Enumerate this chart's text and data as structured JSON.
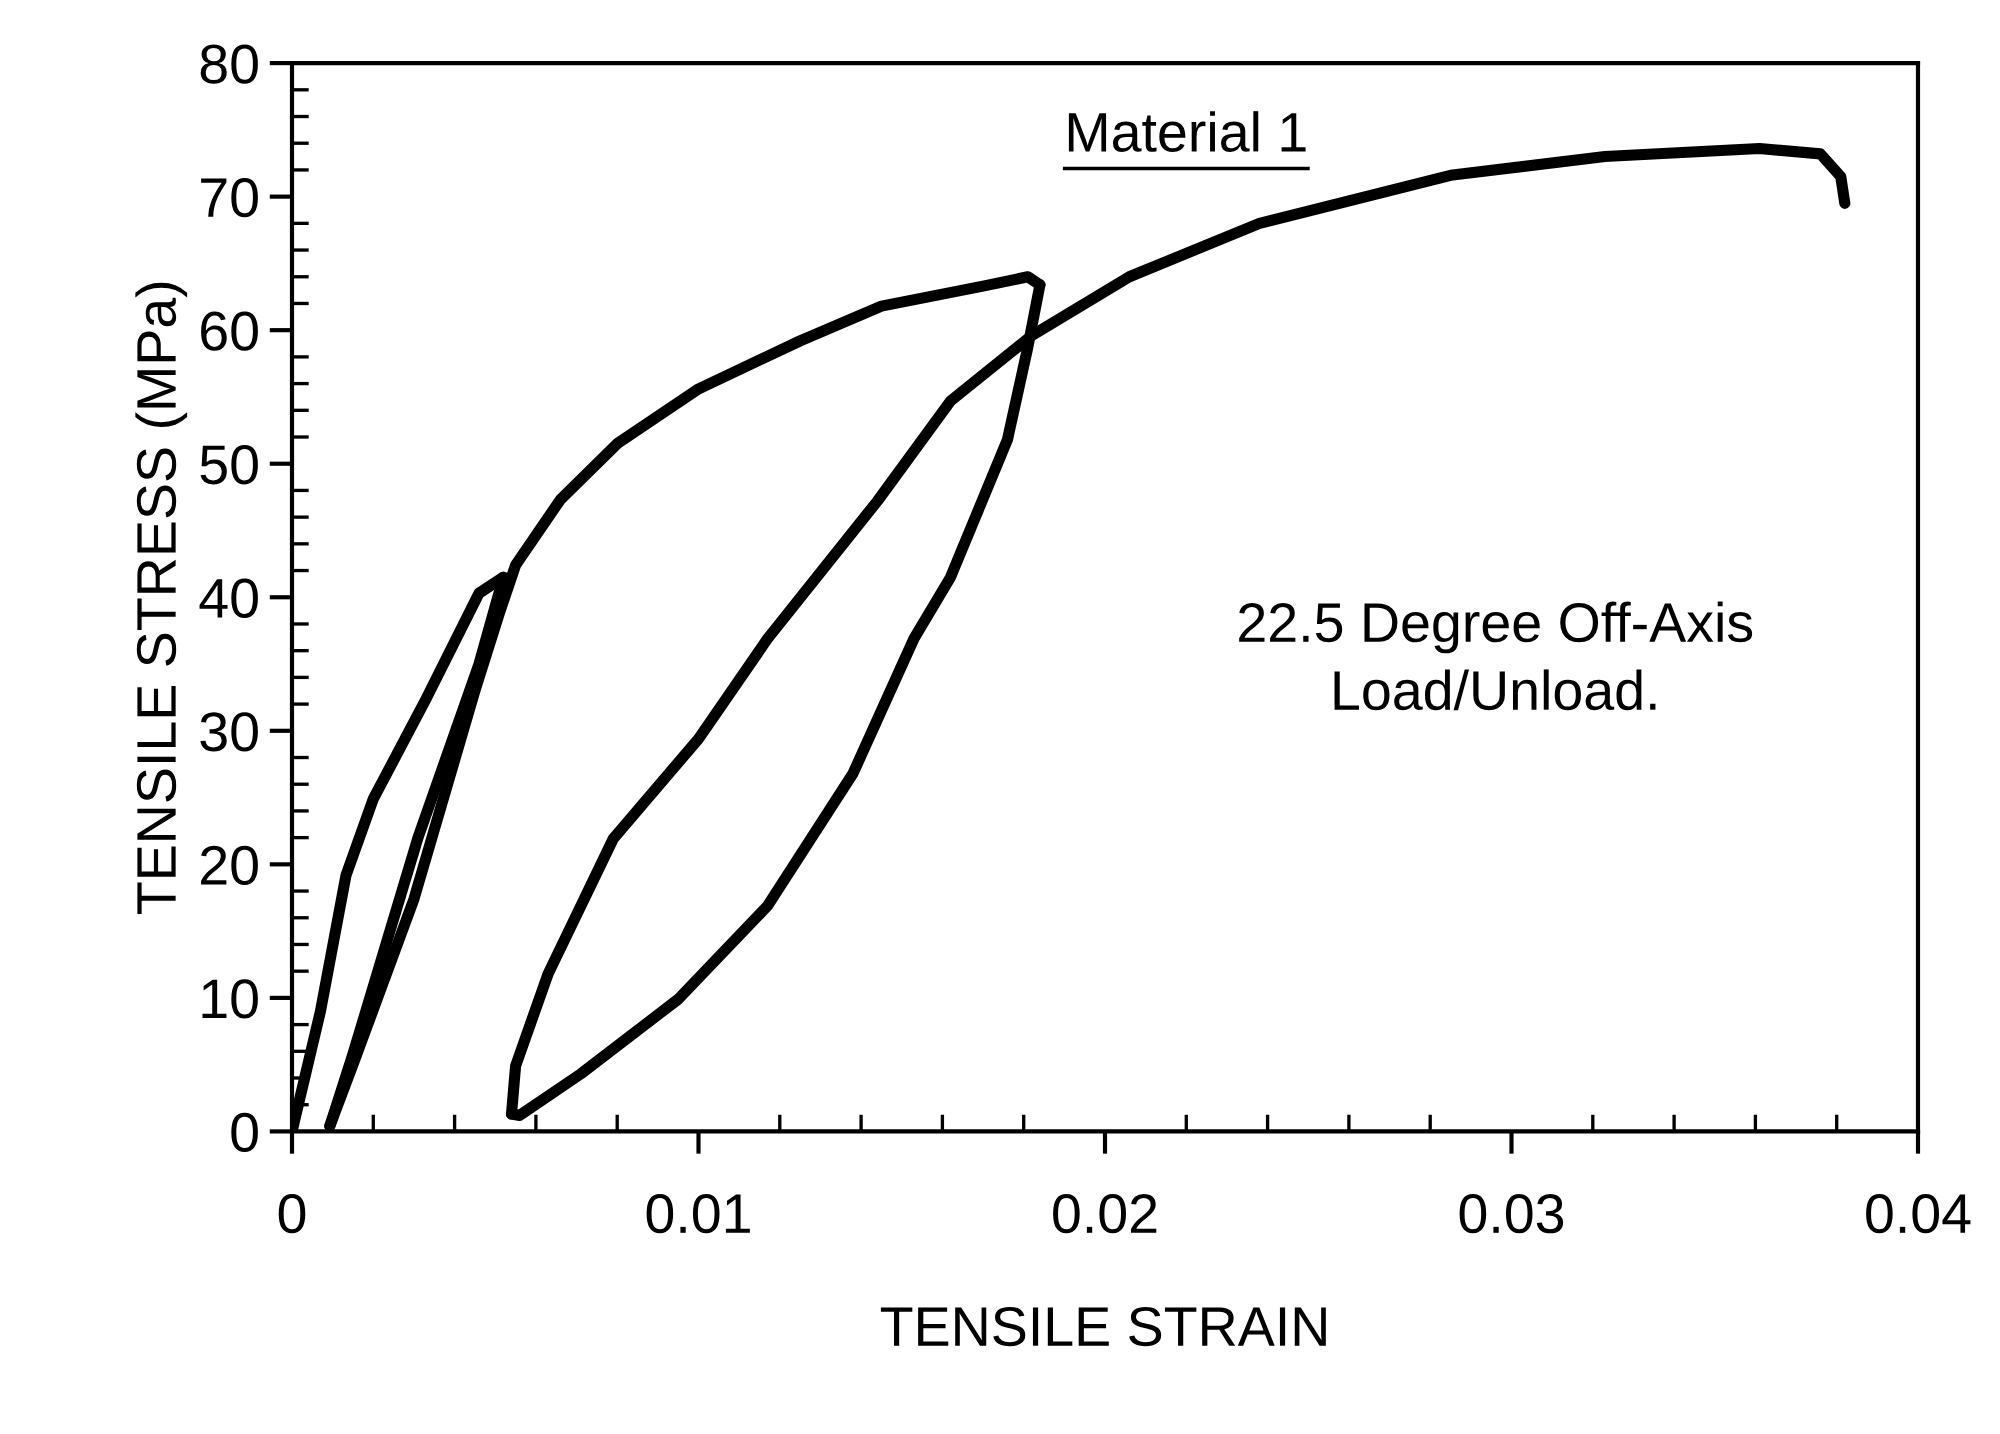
{
  "chart_data": {
    "type": "line",
    "xlabel": "TENSILE STRAIN",
    "ylabel": "TENSILE STRESS (MPa)",
    "xlim": [
      0,
      0.04
    ],
    "ylim": [
      0,
      80
    ],
    "xticks": [
      0,
      0.01,
      0.02,
      0.03,
      0.04
    ],
    "yticks": [
      0,
      10,
      20,
      30,
      40,
      50,
      60,
      70,
      80
    ],
    "grid": false,
    "marker": "none",
    "line_style": "solid",
    "annotations": [
      "Material 1",
      "22.5 Degree Off-Axis\nLoad/Unload."
    ],
    "series": [
      {
        "color": "#000000",
        "x": [
          0,
          0.0007,
          0.00133,
          0.002,
          0.0033,
          0.0046,
          0.0052
        ],
        "values": [
          0,
          9,
          19.2,
          24.9,
          32.4,
          40.3,
          41.5
        ]
      },
      {
        "color": "#000000",
        "x": [
          0.0052,
          0.0046,
          0.0031,
          0.0015,
          0.00093
        ],
        "values": [
          41.5,
          35,
          22,
          5.8,
          0.4
        ]
      },
      {
        "color": "#000000",
        "x": [
          0.00093,
          0.0015,
          0.003,
          0.0045,
          0.0051,
          0.0055,
          0.0066,
          0.008,
          0.01,
          0.0125,
          0.0145,
          0.017,
          0.0181,
          0.0184
        ],
        "values": [
          0.4,
          5,
          17.4,
          33,
          38.8,
          42.4,
          47.3,
          51.5,
          55.6,
          59.2,
          61.8,
          63.3,
          64,
          63.4
        ]
      },
      {
        "color": "#000000",
        "x": [
          0.0184,
          0.0181,
          0.0176,
          0.0162,
          0.0153,
          0.0138,
          0.0117,
          0.0095,
          0.0071,
          0.0056,
          0.0054
        ],
        "values": [
          63.4,
          58.7,
          51.8,
          41.5,
          36.9,
          26.8,
          16.9,
          9.9,
          4.3,
          1.2,
          1.3
        ]
      },
      {
        "color": "#000000",
        "x": [
          0.0054,
          0.0055,
          0.0063,
          0.0079,
          0.01,
          0.0117,
          0.0144,
          0.0162,
          0.0182,
          0.0206,
          0.0238,
          0.0285,
          0.0323,
          0.0361,
          0.0376,
          0.0381,
          0.0382
        ],
        "values": [
          1.3,
          4.9,
          11.8,
          21.9,
          29.4,
          36.9,
          47.2,
          54.7,
          59.6,
          64,
          68,
          71.6,
          73,
          73.6,
          73.2,
          71.5,
          69.5
        ]
      }
    ]
  }
}
